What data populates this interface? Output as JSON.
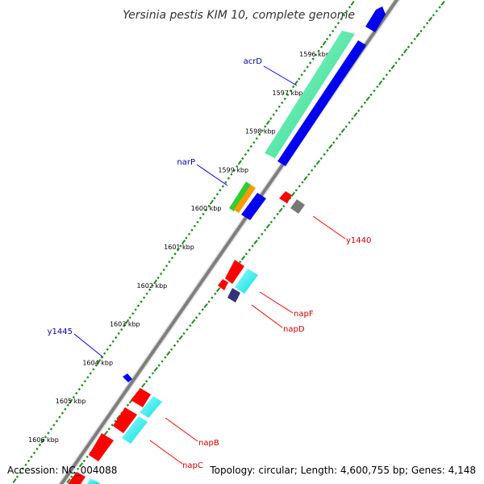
{
  "title": "Yersinia pestis KIM 10, complete genome",
  "accession": "Accession: NC_004088",
  "summary": "Topology: circular; Length: 4,600,755 bp; Genes: 4,148",
  "colors": {
    "backbone": "#808080",
    "ruler": "#228B22",
    "forward_label": "#0000AA",
    "reverse_label": "#CC0000",
    "callout_forward": "#0000FF",
    "callout_reverse": "#FF0000"
  },
  "scale_labels": [
    "1596 kbp",
    "1597 kbp",
    "1598 kbp",
    "1599 kbp",
    "1600 kbp",
    "1601 kbp",
    "1602 kbp",
    "1603 kbp",
    "1604 kbp",
    "1605 kbp",
    "1606 kbp"
  ],
  "gene_labels": [
    {
      "text": "acrD",
      "strand": "forward"
    },
    {
      "text": "narP",
      "strand": "forward"
    },
    {
      "text": "y1445",
      "strand": "forward"
    },
    {
      "text": "y1440",
      "strand": "reverse"
    },
    {
      "text": "napF",
      "strand": "reverse"
    },
    {
      "text": "napD",
      "strand": "reverse"
    },
    {
      "text": "napB",
      "strand": "reverse"
    },
    {
      "text": "napC",
      "strand": "reverse"
    }
  ]
}
